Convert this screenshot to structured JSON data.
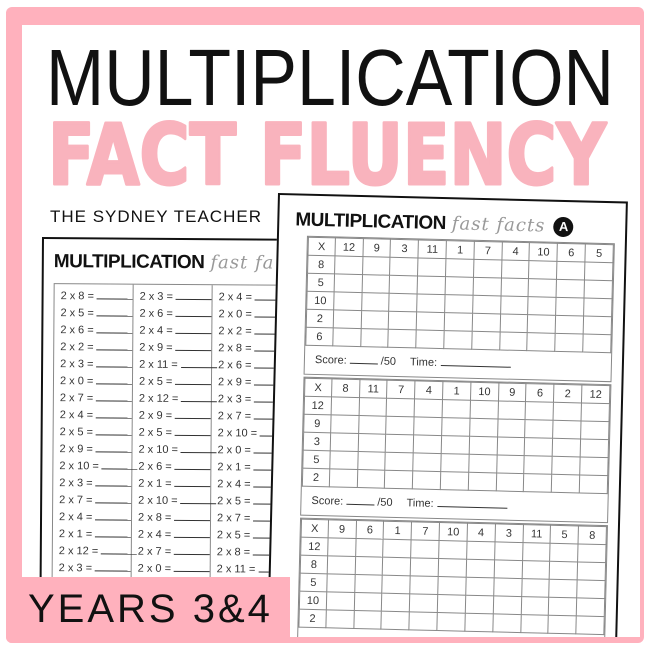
{
  "cover": {
    "title_line1": "MULTIPLICATION",
    "title_line2": "FACT FLUENCY",
    "author": "THE SYDNEY TEACHER",
    "grade_badge": "YEARS 3&4",
    "colors": {
      "pink": "#ffb1bd",
      "title_pink": "#f9b3bd",
      "black": "#111111"
    }
  },
  "left_sheet": {
    "title": "MULTIPLICATION",
    "subtitle": "fast fa",
    "columns": [
      [
        "2 x 8 =",
        "2 x 5 =",
        "2 x 6 =",
        "2 x 2 =",
        "2 x 3 =",
        "2 x 0 =",
        "2 x 7 =",
        "2 x 4 =",
        "2 x 5 =",
        "2 x 9 =",
        "2 x 10 =",
        "2 x 3 =",
        "2 x 7 =",
        "2 x 4 =",
        "2 x 1 =",
        "2 x 12 =",
        "2 x 3 ="
      ],
      [
        "2 x 3 =",
        "2 x 6 =",
        "2 x 4 =",
        "2 x 9 =",
        "2 x 11 =",
        "2 x 5 =",
        "2 x 12 =",
        "2 x 9 =",
        "2 x 5 =",
        "2 x 10 =",
        "2 x 6 =",
        "2 x 1 =",
        "2 x 10 =",
        "2 x 8 =",
        "2 x 4 =",
        "2 x 7 =",
        "2 x 0 ="
      ],
      [
        "2 x 4 =",
        "2 x 0 =",
        "2 x 2 =",
        "2 x 8 =",
        "2 x 6 =",
        "2 x 9 =",
        "2 x 3 =",
        "2 x 7 =",
        "2 x 10 =",
        "2 x 0 =",
        "2 x 1 =",
        "2 x 4 =",
        "2 x 5 =",
        "2 x 7 =",
        "2 x 5 =",
        "2 x 8 =",
        "2 x 11 ="
      ]
    ]
  },
  "right_sheet": {
    "title": "MULTIPLICATION",
    "subtitle": "fast facts",
    "version": "A",
    "score_label": "Score:",
    "score_total": "/50",
    "time_label": "Time:",
    "grids": [
      {
        "corner": "X",
        "columns": [
          "12",
          "9",
          "3",
          "11",
          "1",
          "7",
          "4",
          "10",
          "6",
          "5"
        ],
        "rows": [
          "8",
          "5",
          "10",
          "2",
          "6"
        ]
      },
      {
        "corner": "X",
        "columns": [
          "8",
          "11",
          "7",
          "4",
          "1",
          "10",
          "9",
          "6",
          "2",
          "12"
        ],
        "rows": [
          "12",
          "9",
          "3",
          "5",
          "2"
        ]
      },
      {
        "corner": "X",
        "columns": [
          "9",
          "6",
          "1",
          "7",
          "10",
          "4",
          "3",
          "11",
          "5",
          "8"
        ],
        "rows": [
          "12",
          "8",
          "5",
          "10",
          "2"
        ]
      }
    ]
  }
}
